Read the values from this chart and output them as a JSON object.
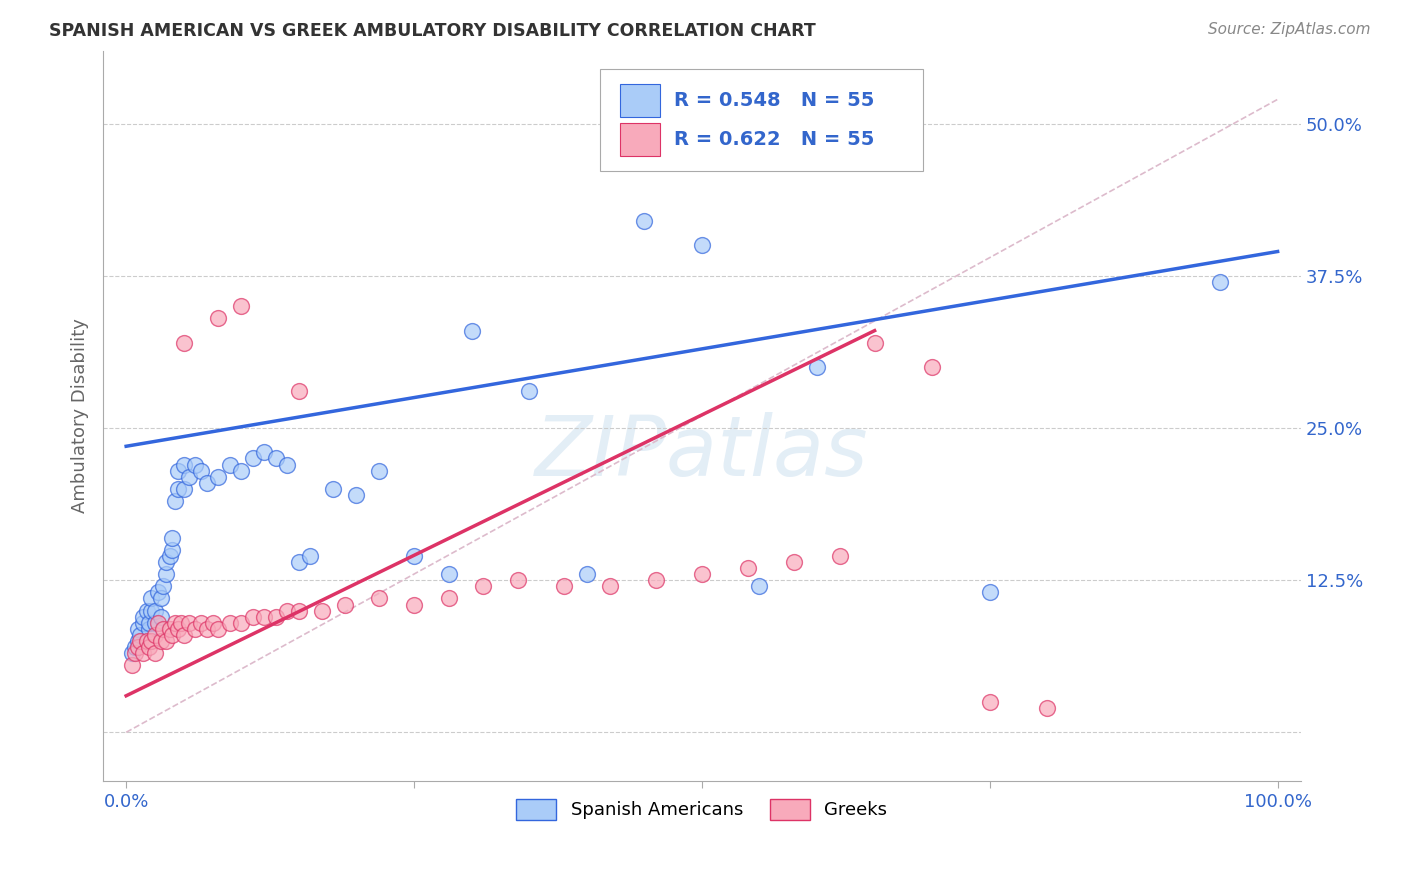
{
  "title": "SPANISH AMERICAN VS GREEK AMBULATORY DISABILITY CORRELATION CHART",
  "source_text": "Source: ZipAtlas.com",
  "ylabel": "Ambulatory Disability",
  "watermark": "ZIPatlas",
  "legend_label1": "Spanish Americans",
  "legend_label2": "Greeks",
  "R1": 0.548,
  "N1": 55,
  "R2": 0.622,
  "N2": 55,
  "color_blue": "#aaccf8",
  "color_pink": "#f8aabb",
  "color_blue_line": "#3366dd",
  "color_pink_line": "#dd3366",
  "color_blue_text": "#3366cc",
  "color_pink_text": "#dd3366",
  "xlim": [
    -0.02,
    1.02
  ],
  "ylim": [
    -0.04,
    0.56
  ],
  "xticks": [
    0.0,
    0.25,
    0.5,
    0.75,
    1.0
  ],
  "xtick_labels": [
    "0.0%",
    "",
    "",
    "",
    "100.0%"
  ],
  "yticks": [
    0.0,
    0.125,
    0.25,
    0.375,
    0.5
  ],
  "ytick_labels": [
    "",
    "12.5%",
    "25.0%",
    "37.5%",
    "50.0%"
  ],
  "blue_line_x": [
    0.0,
    1.0
  ],
  "blue_line_y": [
    0.235,
    0.395
  ],
  "pink_line_x": [
    0.0,
    0.65
  ],
  "pink_line_y": [
    0.03,
    0.33
  ],
  "diag_line_x": [
    0.0,
    1.0
  ],
  "diag_line_y": [
    0.0,
    0.52
  ],
  "spanish_x": [
    0.005,
    0.008,
    0.01,
    0.01,
    0.012,
    0.015,
    0.015,
    0.018,
    0.02,
    0.02,
    0.022,
    0.022,
    0.025,
    0.025,
    0.028,
    0.03,
    0.03,
    0.032,
    0.035,
    0.035,
    0.038,
    0.04,
    0.04,
    0.042,
    0.045,
    0.045,
    0.05,
    0.05,
    0.055,
    0.06,
    0.065,
    0.07,
    0.08,
    0.09,
    0.1,
    0.11,
    0.12,
    0.13,
    0.14,
    0.15,
    0.16,
    0.18,
    0.2,
    0.22,
    0.25,
    0.28,
    0.3,
    0.35,
    0.4,
    0.45,
    0.5,
    0.55,
    0.6,
    0.75,
    0.95
  ],
  "spanish_y": [
    0.065,
    0.07,
    0.075,
    0.085,
    0.08,
    0.09,
    0.095,
    0.1,
    0.085,
    0.09,
    0.1,
    0.11,
    0.09,
    0.1,
    0.115,
    0.095,
    0.11,
    0.12,
    0.13,
    0.14,
    0.145,
    0.15,
    0.16,
    0.19,
    0.2,
    0.215,
    0.2,
    0.22,
    0.21,
    0.22,
    0.215,
    0.205,
    0.21,
    0.22,
    0.215,
    0.225,
    0.23,
    0.225,
    0.22,
    0.14,
    0.145,
    0.2,
    0.195,
    0.215,
    0.145,
    0.13,
    0.33,
    0.28,
    0.13,
    0.42,
    0.4,
    0.12,
    0.3,
    0.115,
    0.37
  ],
  "greek_x": [
    0.005,
    0.008,
    0.01,
    0.012,
    0.015,
    0.018,
    0.02,
    0.022,
    0.025,
    0.025,
    0.028,
    0.03,
    0.032,
    0.035,
    0.038,
    0.04,
    0.042,
    0.045,
    0.048,
    0.05,
    0.055,
    0.06,
    0.065,
    0.07,
    0.075,
    0.08,
    0.09,
    0.1,
    0.11,
    0.12,
    0.13,
    0.14,
    0.15,
    0.17,
    0.19,
    0.22,
    0.25,
    0.28,
    0.31,
    0.34,
    0.38,
    0.42,
    0.46,
    0.5,
    0.54,
    0.58,
    0.62,
    0.65,
    0.7,
    0.8,
    0.05,
    0.08,
    0.1,
    0.15,
    0.75
  ],
  "greek_y": [
    0.055,
    0.065,
    0.07,
    0.075,
    0.065,
    0.075,
    0.07,
    0.075,
    0.065,
    0.08,
    0.09,
    0.075,
    0.085,
    0.075,
    0.085,
    0.08,
    0.09,
    0.085,
    0.09,
    0.08,
    0.09,
    0.085,
    0.09,
    0.085,
    0.09,
    0.085,
    0.09,
    0.09,
    0.095,
    0.095,
    0.095,
    0.1,
    0.1,
    0.1,
    0.105,
    0.11,
    0.105,
    0.11,
    0.12,
    0.125,
    0.12,
    0.12,
    0.125,
    0.13,
    0.135,
    0.14,
    0.145,
    0.32,
    0.3,
    0.02,
    0.32,
    0.34,
    0.35,
    0.28,
    0.025
  ]
}
